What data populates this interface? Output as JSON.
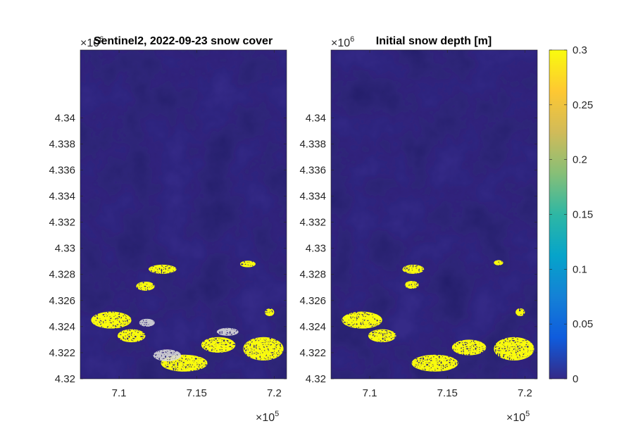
{
  "chart_data": [
    {
      "type": "heatmap",
      "title": "Sentinel2, 2022-09-23 snow cover",
      "xlim": [
        707500,
        720800
      ],
      "ylim": [
        4320000,
        4345200
      ],
      "x_ticks": [
        "7.1",
        "7.15",
        "7.2"
      ],
      "x_tick_values": [
        710000,
        715000,
        720000
      ],
      "x_exponent": "×10",
      "x_exponent_power": "5",
      "y_ticks": [
        "4.32",
        "4.322",
        "4.324",
        "4.326",
        "4.328",
        "4.33",
        "4.332",
        "4.334",
        "4.336",
        "4.338",
        "4.34"
      ],
      "y_tick_values": [
        4320000,
        4322000,
        4324000,
        4326000,
        4328000,
        4330000,
        4332000,
        4334000,
        4336000,
        4338000,
        4340000
      ],
      "y_exponent": "×10",
      "y_exponent_power": "6",
      "background": "hillshade, snow-free area",
      "snow_regions": [
        {
          "x": 712800,
          "y": 4328400,
          "rx": 900,
          "ry": 350,
          "value": 0.3
        },
        {
          "x": 711700,
          "y": 4327100,
          "rx": 600,
          "ry": 350,
          "value": 0.3
        },
        {
          "x": 709500,
          "y": 4324500,
          "rx": 1300,
          "ry": 650,
          "value": 0.3
        },
        {
          "x": 710800,
          "y": 4323300,
          "rx": 900,
          "ry": 500,
          "value": 0.3
        },
        {
          "x": 716400,
          "y": 4322600,
          "rx": 1100,
          "ry": 600,
          "value": 0.3
        },
        {
          "x": 719300,
          "y": 4322300,
          "rx": 1300,
          "ry": 900,
          "value": 0.3
        },
        {
          "x": 714200,
          "y": 4321200,
          "rx": 1500,
          "ry": 650,
          "value": 0.3
        },
        {
          "x": 718300,
          "y": 4328800,
          "rx": 500,
          "ry": 250,
          "value": 0.3
        },
        {
          "x": 719700,
          "y": 4325100,
          "rx": 300,
          "ry": 300,
          "value": 0.3
        }
      ],
      "cloud_regions": [
        {
          "x": 713100,
          "y": 4321800,
          "rx": 900,
          "ry": 450
        },
        {
          "x": 717000,
          "y": 4323600,
          "rx": 700,
          "ry": 300
        },
        {
          "x": 711800,
          "y": 4324300,
          "rx": 500,
          "ry": 300
        }
      ]
    },
    {
      "type": "heatmap",
      "title": "Initial snow depth [m]",
      "xlim": [
        707500,
        720800
      ],
      "ylim": [
        4320000,
        4345200
      ],
      "x_ticks": [
        "7.1",
        "7.15",
        "7.2"
      ],
      "x_tick_values": [
        710000,
        715000,
        720000
      ],
      "x_exponent": "×10",
      "x_exponent_power": "5",
      "y_ticks": [
        "4.32",
        "4.322",
        "4.324",
        "4.326",
        "4.328",
        "4.33",
        "4.332",
        "4.334",
        "4.336",
        "4.338",
        "4.34"
      ],
      "y_tick_values": [
        4320000,
        4322000,
        4324000,
        4326000,
        4328000,
        4330000,
        4332000,
        4334000,
        4336000,
        4338000,
        4340000
      ],
      "y_exponent": "×10",
      "y_exponent_power": "6",
      "color_range": [
        0,
        0.3
      ],
      "snow_regions": [
        {
          "x": 712800,
          "y": 4328400,
          "rx": 700,
          "ry": 350,
          "value": 0.3
        },
        {
          "x": 712700,
          "y": 4327200,
          "rx": 450,
          "ry": 300,
          "value": 0.3
        },
        {
          "x": 709500,
          "y": 4324500,
          "rx": 1300,
          "ry": 650,
          "value": 0.3
        },
        {
          "x": 710800,
          "y": 4323300,
          "rx": 900,
          "ry": 500,
          "value": 0.3
        },
        {
          "x": 716400,
          "y": 4322400,
          "rx": 1100,
          "ry": 600,
          "value": 0.3
        },
        {
          "x": 719300,
          "y": 4322300,
          "rx": 1300,
          "ry": 900,
          "value": 0.3
        },
        {
          "x": 714200,
          "y": 4321200,
          "rx": 1500,
          "ry": 650,
          "value": 0.3
        },
        {
          "x": 718300,
          "y": 4328900,
          "rx": 300,
          "ry": 200,
          "value": 0.3
        },
        {
          "x": 719700,
          "y": 4325100,
          "rx": 300,
          "ry": 300,
          "value": 0.3
        }
      ]
    }
  ],
  "colorbar": {
    "ticks": [
      "0",
      "0.05",
      "0.1",
      "0.15",
      "0.2",
      "0.25",
      "0.3"
    ],
    "tick_values": [
      0,
      0.05,
      0.1,
      0.15,
      0.2,
      0.25,
      0.3
    ],
    "range": [
      0,
      0.3
    ],
    "colormap": "parula"
  },
  "colors": {
    "snow_free": "#352a87",
    "snow": "#f9fb0e",
    "cloud": "#d9d9d9"
  }
}
